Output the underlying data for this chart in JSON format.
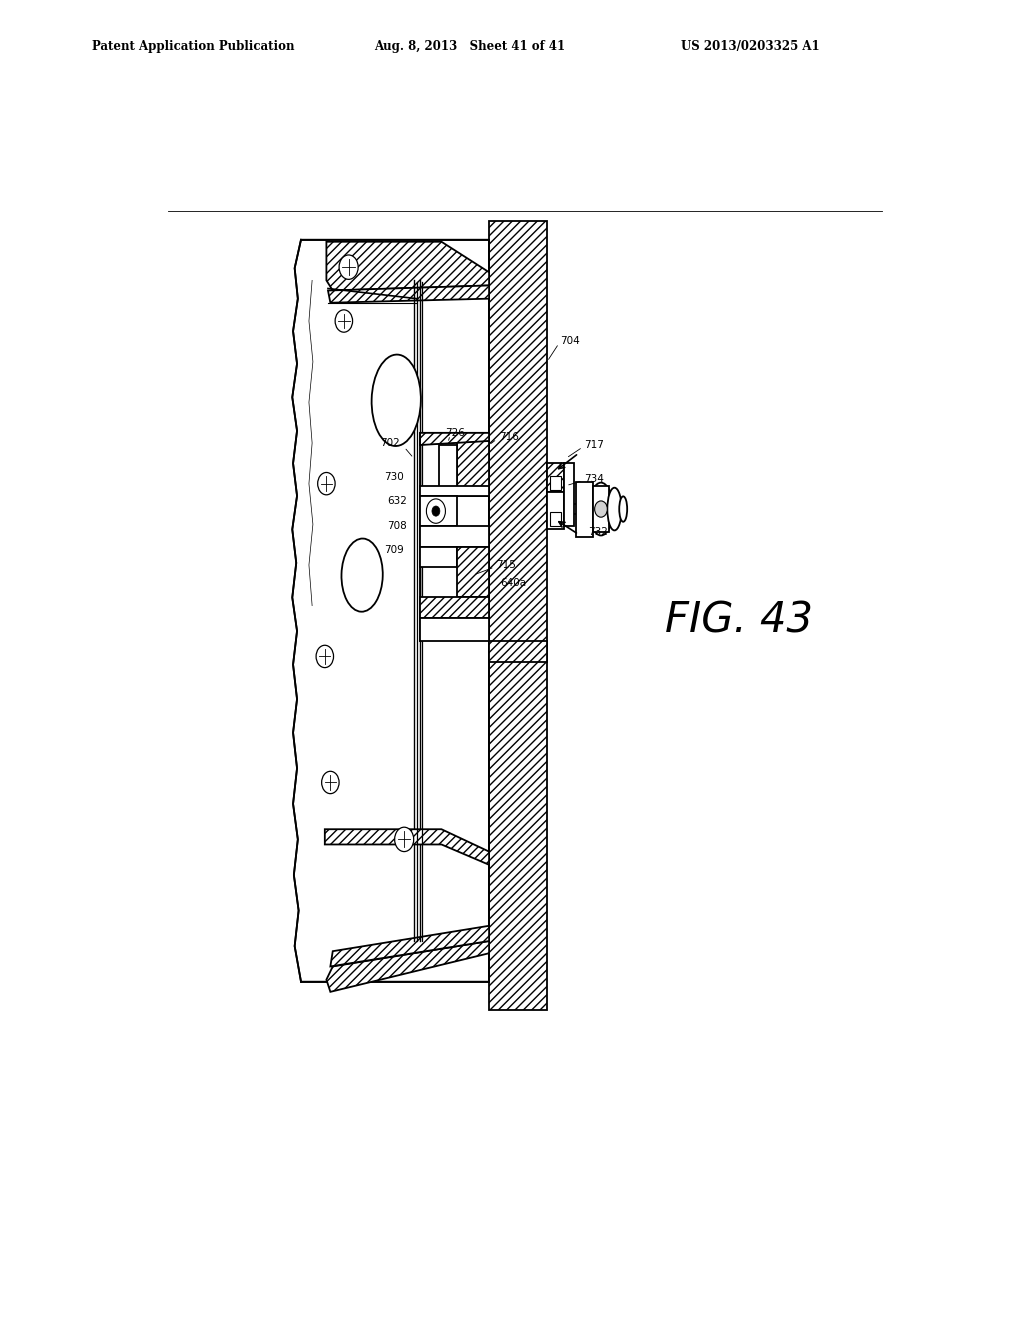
{
  "header_left": "Patent Application Publication",
  "header_center": "Aug. 8, 2013   Sheet 41 of 41",
  "header_right": "US 2013/0203325 A1",
  "fig_label": "FIG. 43",
  "background_color": "#ffffff",
  "line_color": "#000000"
}
